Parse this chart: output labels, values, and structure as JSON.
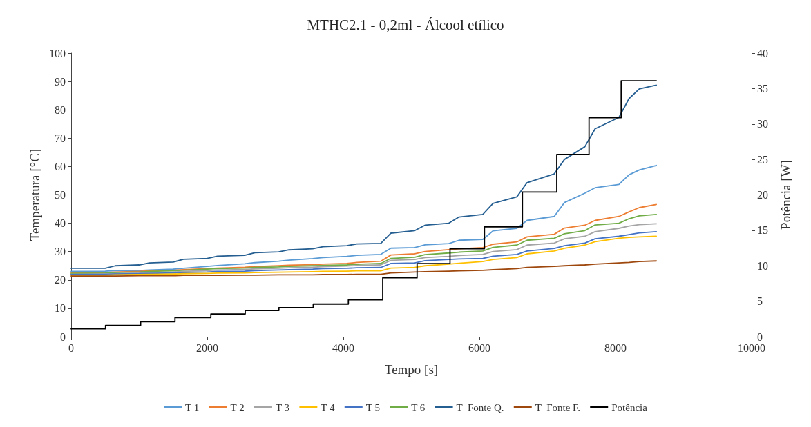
{
  "chart_data": {
    "type": "line",
    "title": "MTHC2.1 - 0,2ml - Álcool etílico",
    "xlabel": "Tempo [s]",
    "ylabel": "Temperatura [°C]",
    "y2label": "Potência [W]",
    "xlim": [
      0,
      10000
    ],
    "xticks": [
      0,
      2000,
      4000,
      6000,
      8000,
      10000
    ],
    "ylim": [
      0,
      100
    ],
    "yticks": [
      0,
      10,
      20,
      30,
      40,
      50,
      60,
      70,
      80,
      90,
      100
    ],
    "y2lim": [
      0,
      40
    ],
    "y2ticks": [
      0,
      5,
      10,
      15,
      20,
      25,
      30,
      35,
      40
    ],
    "grid": false,
    "legend": "bottom",
    "marker": "none",
    "line_style": "solid",
    "x": [
      0,
      500,
      650,
      1000,
      1150,
      1500,
      1650,
      2000,
      2150,
      2550,
      2700,
      3050,
      3200,
      3550,
      3700,
      4050,
      4200,
      4550,
      4700,
      5050,
      5200,
      5550,
      5700,
      6050,
      6200,
      6550,
      6700,
      7100,
      7250,
      7550,
      7700,
      8050,
      8200,
      8350,
      8600
    ],
    "series": [
      {
        "name": "T 1",
        "color": "#5b9bd5",
        "values": [
          23.0,
          23.1,
          23.3,
          23.3,
          23.5,
          23.8,
          24.1,
          24.8,
          25.1,
          25.7,
          26.1,
          26.6,
          27.0,
          27.5,
          27.9,
          28.3,
          28.7,
          29.0,
          31.2,
          31.4,
          32.4,
          32.8,
          34.0,
          34.3,
          37.3,
          38.2,
          41.0,
          42.4,
          47.3,
          50.6,
          52.5,
          53.7,
          57.1,
          58.8,
          60.4
        ]
      },
      {
        "name": "T 2",
        "color": "#ed7d31",
        "values": [
          22.5,
          22.6,
          22.8,
          23.0,
          23.2,
          23.4,
          23.6,
          24.0,
          24.2,
          24.5,
          24.7,
          25.0,
          25.2,
          25.4,
          25.6,
          25.8,
          26.2,
          26.6,
          28.8,
          29.2,
          30.0,
          30.7,
          31.0,
          31.4,
          32.6,
          33.4,
          35.2,
          36.1,
          38.3,
          39.3,
          41.0,
          42.4,
          44.0,
          45.5,
          46.6
        ]
      },
      {
        "name": "T 3",
        "color": "#a5a5a5",
        "values": [
          22.0,
          22.1,
          22.2,
          22.4,
          22.6,
          22.8,
          23.0,
          23.3,
          23.5,
          23.7,
          23.9,
          24.1,
          24.3,
          24.5,
          24.7,
          24.9,
          25.1,
          25.3,
          26.9,
          27.2,
          27.9,
          28.3,
          28.6,
          29.0,
          30.0,
          30.7,
          32.3,
          33.0,
          34.5,
          35.4,
          37.0,
          38.2,
          39.0,
          39.5,
          39.8
        ]
      },
      {
        "name": "T 4",
        "color": "#ffc000",
        "values": [
          21.7,
          21.7,
          21.8,
          21.9,
          22.0,
          22.1,
          22.2,
          22.3,
          22.4,
          22.5,
          22.6,
          22.7,
          22.8,
          22.9,
          23.0,
          23.1,
          23.2,
          23.2,
          24.2,
          24.4,
          25.0,
          25.6,
          25.9,
          26.5,
          27.2,
          27.9,
          29.2,
          30.2,
          31.2,
          32.3,
          33.5,
          34.7,
          35.0,
          35.2,
          35.4
        ]
      },
      {
        "name": "T 5",
        "color": "#4472c4",
        "values": [
          21.9,
          22.0,
          22.1,
          22.2,
          22.3,
          22.5,
          22.6,
          22.8,
          23.0,
          23.1,
          23.3,
          23.5,
          23.6,
          23.8,
          24.0,
          24.1,
          24.3,
          24.4,
          25.8,
          26.0,
          26.8,
          27.2,
          27.4,
          27.6,
          28.4,
          29.0,
          30.2,
          31.1,
          32.1,
          33.0,
          34.5,
          35.4,
          36.0,
          36.6,
          37.0
        ]
      },
      {
        "name": "T 6",
        "color": "#70ad47",
        "values": [
          22.3,
          22.4,
          22.6,
          22.8,
          23.0,
          23.2,
          23.4,
          23.8,
          24.0,
          24.2,
          24.4,
          24.6,
          24.8,
          25.0,
          25.1,
          25.3,
          25.5,
          25.8,
          27.6,
          28.0,
          28.9,
          29.5,
          29.8,
          30.2,
          31.5,
          32.3,
          34.0,
          34.7,
          36.3,
          37.4,
          39.4,
          40.0,
          41.6,
          42.6,
          43.1
        ]
      },
      {
        "name": "T  Fonte Q.",
        "color": "#255e91",
        "values": [
          24.1,
          24.1,
          25.0,
          25.3,
          26.0,
          26.3,
          27.3,
          27.6,
          28.4,
          28.7,
          29.6,
          29.9,
          30.6,
          31.0,
          31.7,
          32.1,
          32.7,
          32.9,
          36.5,
          37.4,
          39.3,
          40.0,
          42.2,
          43.1,
          47.0,
          49.3,
          54.3,
          57.4,
          62.5,
          67.0,
          73.3,
          77.3,
          84.0,
          87.4,
          88.7
        ]
      },
      {
        "name": "T  Fonte F.",
        "color": "#9e480e",
        "values": [
          21.4,
          21.4,
          21.4,
          21.5,
          21.5,
          21.5,
          21.6,
          21.6,
          21.6,
          21.7,
          21.7,
          21.8,
          21.8,
          21.8,
          21.9,
          21.9,
          22.0,
          22.0,
          22.5,
          22.8,
          22.9,
          23.1,
          23.2,
          23.4,
          23.6,
          24.0,
          24.4,
          24.8,
          25.0,
          25.3,
          25.6,
          26.0,
          26.2,
          26.5,
          26.7
        ]
      },
      {
        "name": "Potência",
        "type": "step",
        "axis": "y2",
        "color": "#000000",
        "x": [
          0,
          505,
          1021,
          1526,
          2053,
          2558,
          3053,
          3558,
          4074,
          4579,
          5084,
          5568,
          6074,
          6632,
          7137,
          7611,
          8084,
          8600
        ],
        "values": [
          1.1,
          1.6,
          2.1,
          2.7,
          3.2,
          3.7,
          4.1,
          4.6,
          5.2,
          8.3,
          10.3,
          12.4,
          15.5,
          20.4,
          25.7,
          30.9,
          36.1,
          36.1
        ]
      }
    ]
  }
}
